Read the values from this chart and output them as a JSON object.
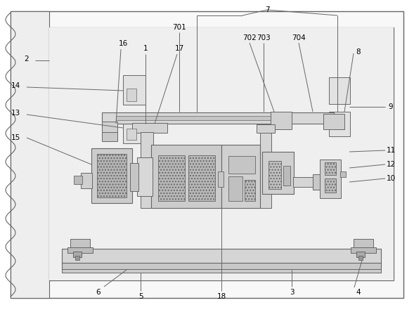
{
  "bg_color": "#ffffff",
  "lc": "#666666",
  "fill_outer": "#f0f0f0",
  "fill_inner": "#ebebeb",
  "fill_med": "#d8d8d8",
  "fill_dark": "#b0b0b0",
  "fill_hatch": "#c8c8c8"
}
